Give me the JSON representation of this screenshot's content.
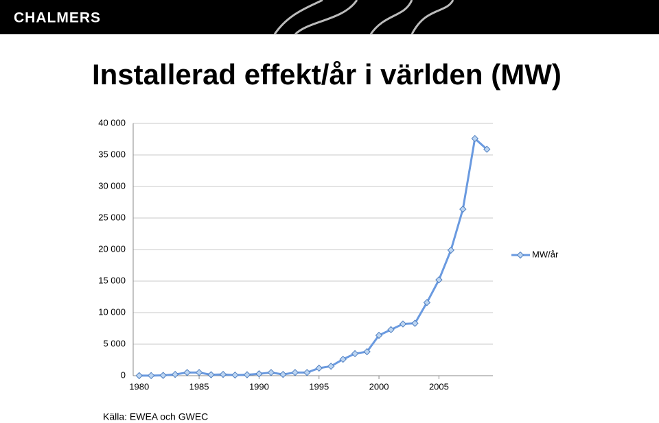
{
  "header": {
    "brand": "CHALMERS"
  },
  "chart_data": {
    "type": "line",
    "title": "Installerad effekt/år i världen (MW)",
    "x": [
      1980,
      1981,
      1982,
      1983,
      1984,
      1985,
      1986,
      1987,
      1988,
      1989,
      1990,
      1991,
      1992,
      1993,
      1994,
      1995,
      1996,
      1997,
      1998,
      1999,
      2000,
      2001,
      2002,
      2003,
      2004,
      2005,
      2006,
      2007,
      2008,
      2009
    ],
    "series": [
      {
        "name": "MW/år",
        "color": "#6a9ae0",
        "values": [
          10,
          20,
          50,
          200,
          500,
          500,
          150,
          200,
          100,
          150,
          300,
          500,
          200,
          500,
          500,
          1200,
          1500,
          2600,
          3500,
          3800,
          6400,
          7300,
          8200,
          8300,
          11600,
          15200,
          19900,
          26400,
          37600,
          35900
        ]
      }
    ],
    "xlim": [
      1979.5,
      2009.5
    ],
    "xticks": [
      1980,
      1985,
      1990,
      1995,
      2000,
      2005
    ],
    "ylim": [
      0,
      40000
    ],
    "yticks": [
      0,
      {
        "value": 5000,
        "label": "5 000"
      },
      {
        "value": 10000,
        "label": "10 000"
      },
      {
        "value": 15000,
        "label": "15 000"
      },
      {
        "value": 20000,
        "label": "20 000"
      },
      {
        "value": 25000,
        "label": "25 000"
      },
      {
        "value": 30000,
        "label": "30 000"
      },
      {
        "value": 35000,
        "label": "35 000"
      },
      {
        "value": 40000,
        "label": "40 000"
      }
    ],
    "grid": true,
    "legend": "right"
  },
  "source": "Källa: EWEA och GWEC"
}
